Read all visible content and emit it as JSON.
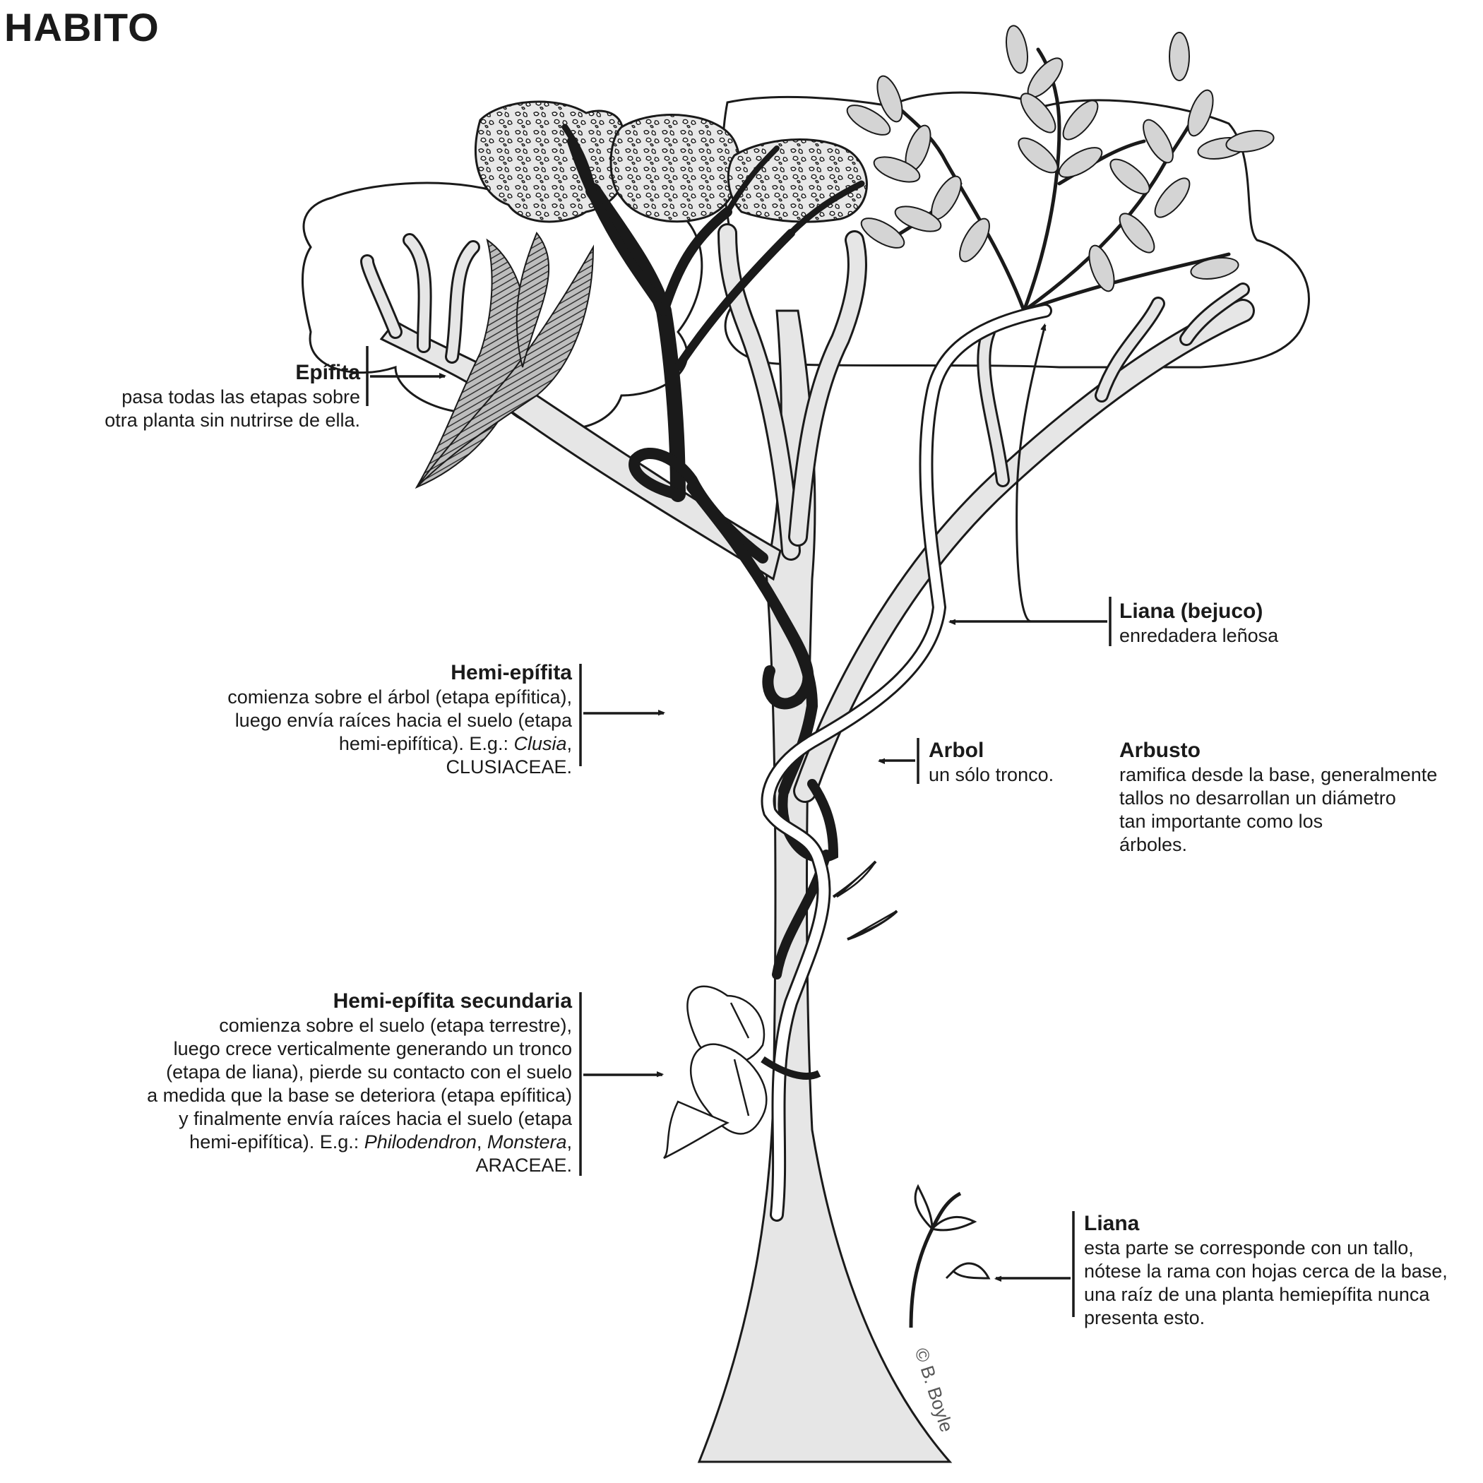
{
  "title": "HABITO",
  "credit": "© B. Boyle",
  "colors": {
    "ink": "#1a1a1a",
    "trunk_fill": "#e6e6e6",
    "leaf_fill": "#d4d4d4",
    "canopy_fill": "#f2f2f2"
  },
  "labels": {
    "epifita": {
      "heading": "Epífita",
      "lines": [
        "pasa todas las etapas sobre",
        "otra planta sin nutrirse de ella."
      ]
    },
    "liana_bejuco": {
      "heading": "Liana (bejuco)",
      "lines": [
        "enredadera leñosa"
      ]
    },
    "hemi_epifita": {
      "heading": "Hemi-epífita",
      "line1": "comienza sobre el árbol (etapa epífitica),",
      "line2": "luego envía raíces hacia el suelo (etapa",
      "line3_pre": "hemi-epifítica). E.g.: ",
      "line3_italic": "Clusia",
      "line3_post": ",",
      "line4": "CLUSIACEAE."
    },
    "arbol": {
      "heading": "Arbol",
      "lines": [
        "un sólo tronco."
      ]
    },
    "arbusto": {
      "heading": "Arbusto",
      "lines": [
        "ramifica desde la base, generalmente",
        "tallos no desarrollan un diámetro",
        "tan importante como los",
        "árboles."
      ]
    },
    "hemi_secundaria": {
      "heading": "Hemi-epífita secundaria",
      "line1": "comienza sobre el suelo (etapa terrestre),",
      "line2": "luego crece verticalmente generando un tronco",
      "line3": "(etapa de liana), pierde su contacto con el suelo",
      "line4": "a medida que la base se deteriora (etapa epífitica)",
      "line5": "y finalmente envía raíces hacia el suelo (etapa",
      "line6_pre": "hemi-epifítica). E.g.: ",
      "line6_italic1": "Philodendron",
      "line6_mid": ", ",
      "line6_italic2": "Monstera",
      "line6_post": ",",
      "line7": "ARACEAE."
    },
    "liana": {
      "heading": "Liana",
      "lines": [
        "esta parte se corresponde con un tallo,",
        "nótese la rama con hojas cerca de la base,",
        "una raíz de una planta hemiepífita nunca",
        "presenta esto."
      ]
    }
  }
}
